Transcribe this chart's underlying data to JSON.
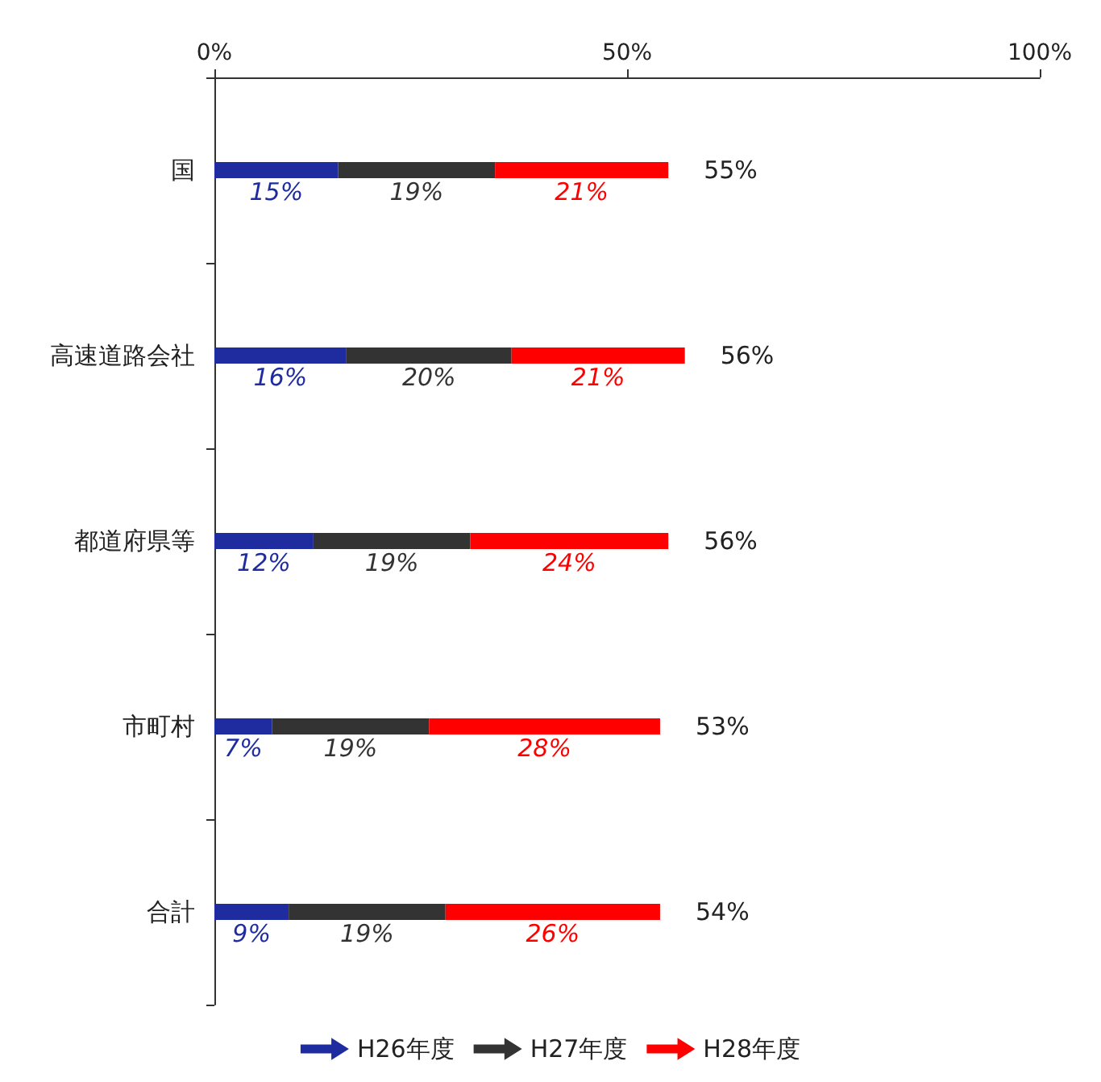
{
  "chart_data": {
    "type": "bar",
    "orientation": "horizontal",
    "stacked": true,
    "categories": [
      "国",
      "高速道路会社",
      "都道府県等",
      "市町村",
      "合計"
    ],
    "series": [
      {
        "name": "H26年度",
        "color": "#1f2ca0",
        "values": [
          15,
          16,
          12,
          7,
          9
        ],
        "value_labels": [
          "15%",
          "16%",
          "12%",
          "7%",
          "9%"
        ]
      },
      {
        "name": "H27年度",
        "color": "#333333",
        "values": [
          19,
          20,
          19,
          19,
          19
        ],
        "value_labels": [
          "19%",
          "20%",
          "19%",
          "19%",
          "19%"
        ]
      },
      {
        "name": "H28年度",
        "color": "#ff0000",
        "values": [
          21,
          21,
          24,
          28,
          26
        ],
        "value_labels": [
          "21%",
          "21%",
          "24%",
          "28%",
          "26%"
        ]
      }
    ],
    "totals": [
      "55%",
      "56%",
      "56%",
      "53%",
      "54%"
    ],
    "xlim": [
      0,
      100
    ],
    "xticks": [
      {
        "value": 0,
        "label": "0%"
      },
      {
        "value": 50,
        "label": "50%"
      },
      {
        "value": 100,
        "label": "100%"
      }
    ],
    "grid": false,
    "legend": "bottom"
  }
}
